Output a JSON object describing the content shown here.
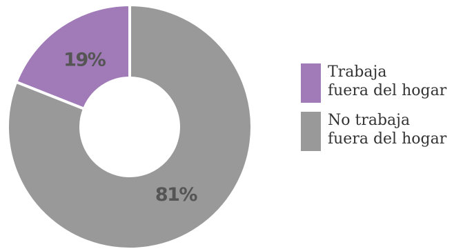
{
  "chart_data": {
    "type": "pie",
    "variant": "donut",
    "title": "",
    "slices": [
      {
        "label_lines": [
          "Trabaja",
          "fuera del hogar"
        ],
        "value": 19,
        "display": "19%",
        "color": "#a07bb7"
      },
      {
        "label_lines": [
          "No trabaja",
          "fuera del hogar"
        ],
        "value": 81,
        "display": "81%",
        "color": "#999999"
      }
    ],
    "legend_placement": "right",
    "start_angle": "top",
    "direction": "counter-clockwise"
  }
}
